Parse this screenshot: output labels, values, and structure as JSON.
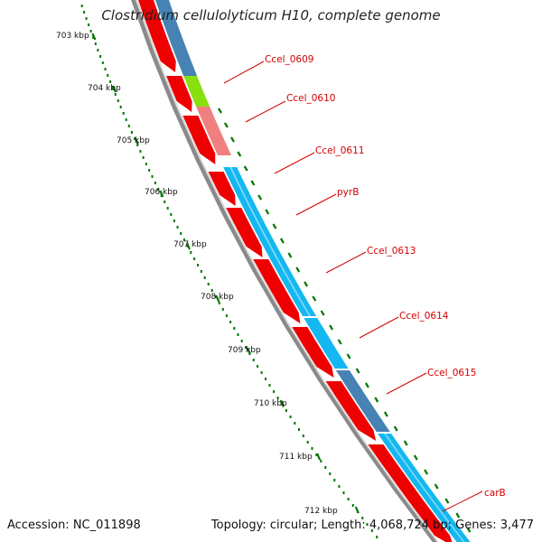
{
  "title": "Clostridium cellulolyticum H10, complete genome",
  "footer": {
    "accession": "Accession: NC_011898",
    "topology": "Topology: circular; Length: 4,068,724 bp; Genes: 3,477"
  },
  "scale_labels": [
    "703 kbp",
    "704 kbp",
    "705 kbp",
    "706 kbp",
    "707 kbp",
    "708 kbp",
    "709 kbp",
    "710 kbp",
    "711 kbp",
    "712 kbp"
  ],
  "gene_labels": [
    "Ccel_0609",
    "Ccel_0610",
    "Ccel_0611",
    "pyrB",
    "Ccel_0613",
    "Ccel_0614",
    "Ccel_0615",
    "carB"
  ],
  "colors": {
    "cds_arrow": "#ee0000",
    "ring_grey": "#8a8a8a",
    "steel_blue": "#4682b4",
    "light_green": "#88e010",
    "salmon": "#f08080",
    "sky_blue": "#14b8f0",
    "tick_green": "#007700",
    "label_red": "#d40000"
  }
}
